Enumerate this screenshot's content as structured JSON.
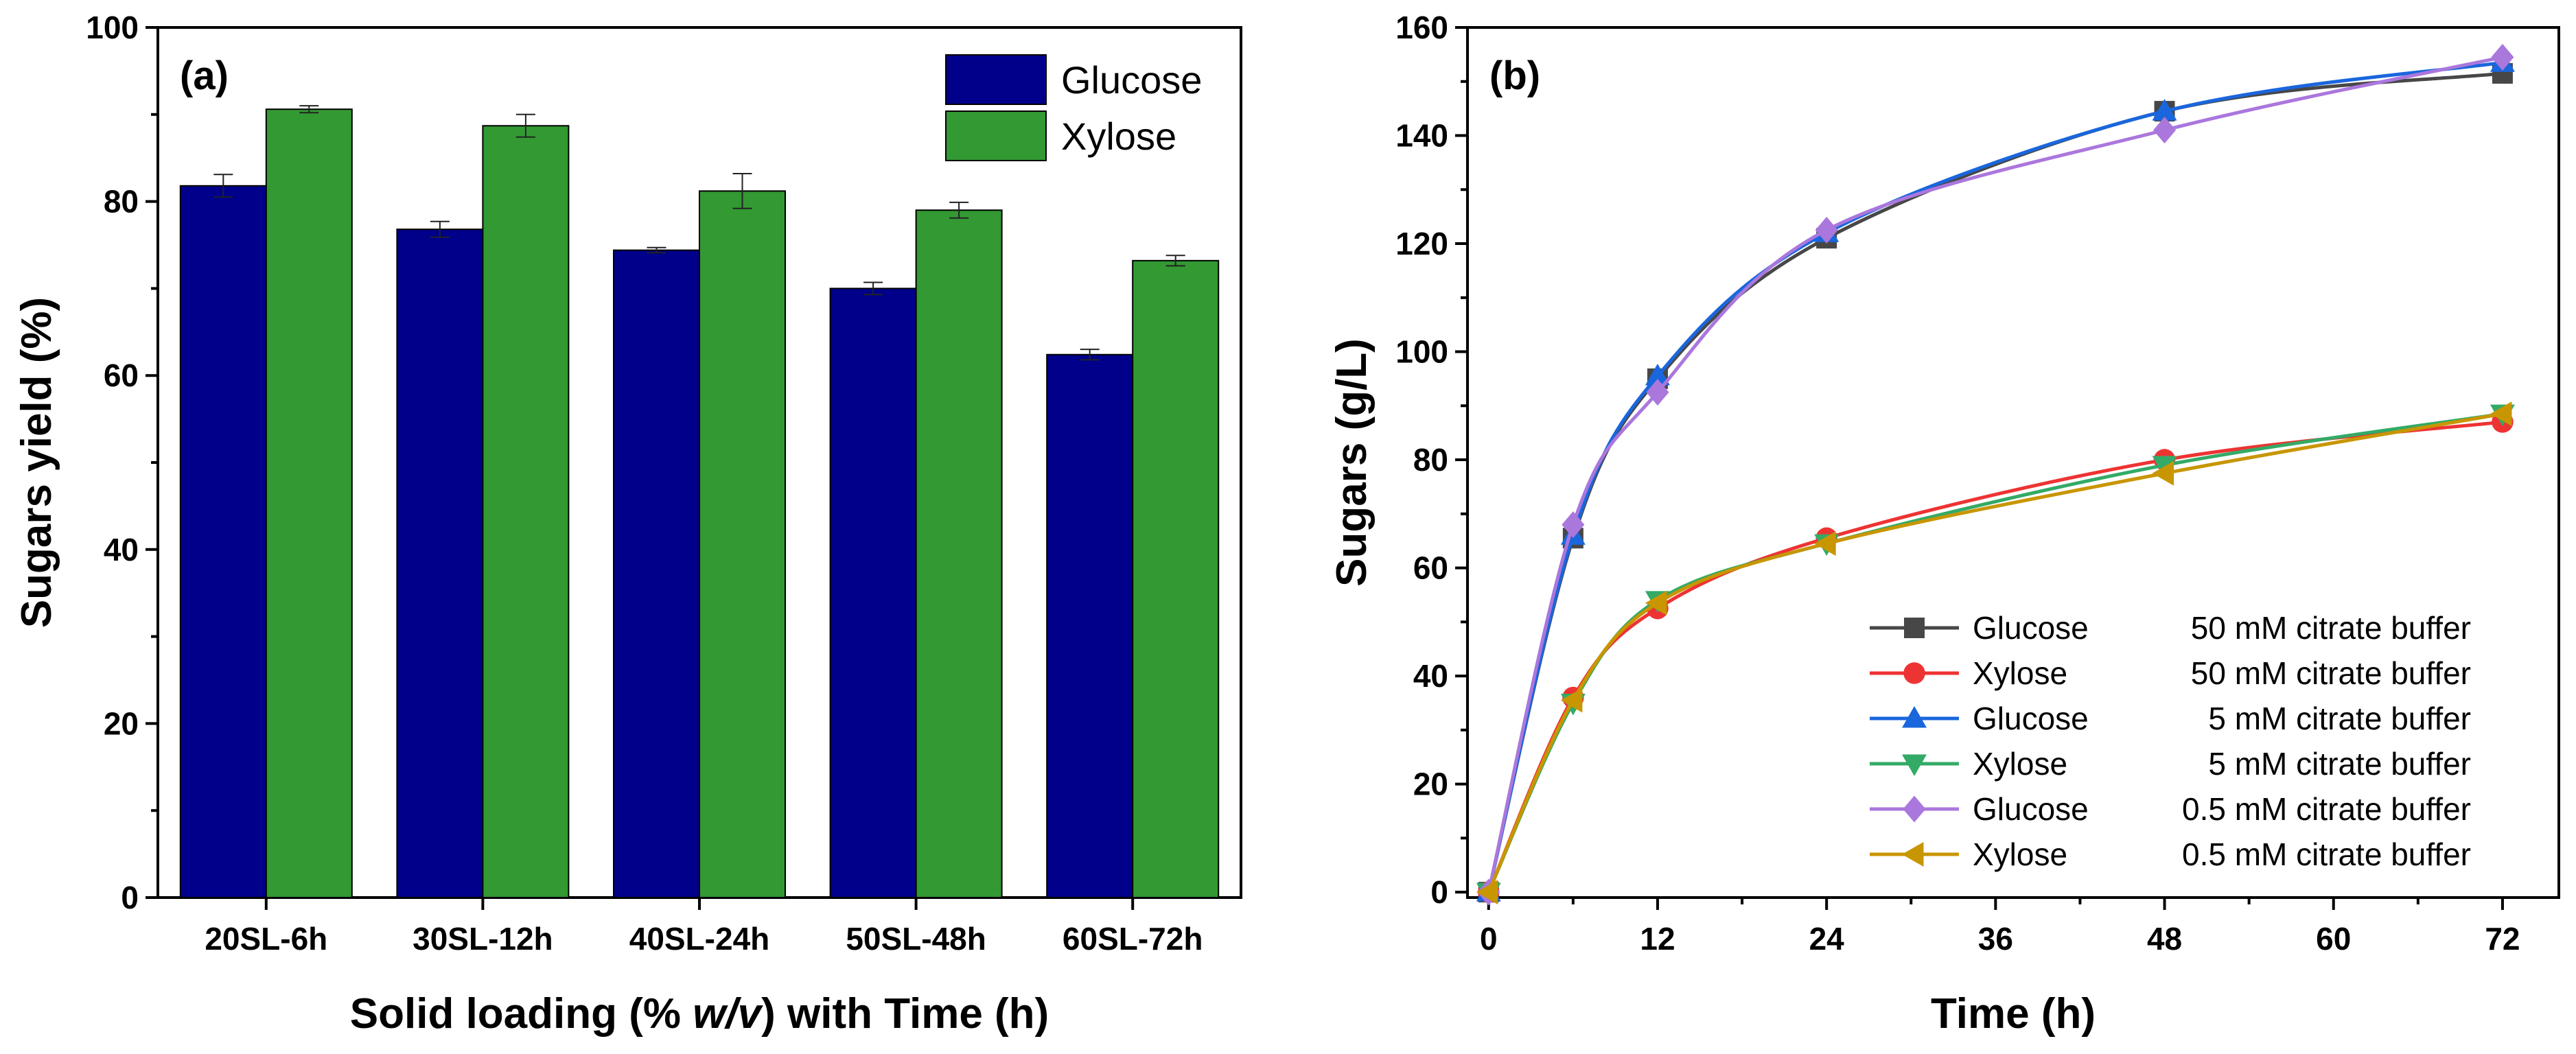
{
  "chart_data": [
    {
      "type": "bar",
      "panel_label": "(a)",
      "title": "",
      "xlabel": "Solid loading (% w/v) with Time (h)",
      "xlabel_parts": [
        "Solid loading (% ",
        "w/v",
        ") with Time (h)"
      ],
      "ylabel": "Sugars yield (%)",
      "ylim": [
        0,
        100
      ],
      "yticks": [
        0,
        20,
        40,
        60,
        80,
        100
      ],
      "categories": [
        "20SL-6h",
        "30SL-12h",
        "40SL-24h",
        "50SL-48h",
        "60SL-72h"
      ],
      "series": [
        {
          "name": "Glucose",
          "color": "#00008b",
          "values": [
            81.8,
            76.8,
            74.4,
            70.0,
            62.4
          ],
          "errors": [
            1.3,
            0.9,
            0.3,
            0.7,
            0.6
          ]
        },
        {
          "name": "Xylose",
          "color": "#339933",
          "values": [
            90.6,
            88.7,
            81.2,
            79.0,
            73.2
          ],
          "errors": [
            0.4,
            1.3,
            2.0,
            0.9,
            0.6
          ]
        }
      ],
      "legend_position": "top-right"
    },
    {
      "type": "line",
      "panel_label": "(b)",
      "title": "",
      "xlabel": "Time (h)",
      "ylabel": "Sugars (g/L)",
      "xlim": [
        -1.5,
        76
      ],
      "ylim": [
        -1,
        160
      ],
      "xticks": [
        0,
        12,
        24,
        36,
        48,
        60,
        72
      ],
      "yticks": [
        0,
        20,
        40,
        60,
        80,
        100,
        120,
        140,
        160
      ],
      "x": [
        0,
        6,
        12,
        24,
        48,
        72
      ],
      "series": [
        {
          "name": "Glucose",
          "condition": "50 mM citrate buffer",
          "color": "#474747",
          "marker": "square",
          "values": [
            0,
            65.5,
            95.0,
            121.0,
            144.5,
            151.5
          ]
        },
        {
          "name": "Xylose",
          "condition": "50 mM citrate buffer",
          "color": "#ee3333",
          "marker": "circle",
          "values": [
            0,
            36.0,
            52.5,
            65.5,
            80.0,
            87.0
          ]
        },
        {
          "name": "Glucose",
          "condition": "5 mM citrate buffer",
          "color": "#1a66dd",
          "marker": "triangle-up",
          "values": [
            0,
            66.0,
            95.5,
            122.0,
            144.5,
            153.5
          ]
        },
        {
          "name": "Xylose",
          "condition": "5 mM citrate buffer",
          "color": "#33aa66",
          "marker": "triangle-down",
          "values": [
            0,
            35.0,
            54.0,
            64.5,
            79.0,
            88.5
          ]
        },
        {
          "name": "Glucose",
          "condition": "0.5 mM citrate buffer",
          "color": "#aa77dd",
          "marker": "diamond",
          "values": [
            0,
            68.0,
            92.5,
            122.5,
            141.0,
            154.5
          ]
        },
        {
          "name": "Xylose",
          "condition": "0.5 mM citrate buffer",
          "color": "#c89600",
          "marker": "triangle-left",
          "values": [
            0,
            35.5,
            53.5,
            64.5,
            77.5,
            88.5
          ]
        }
      ],
      "legend_position": "bottom-right"
    }
  ]
}
